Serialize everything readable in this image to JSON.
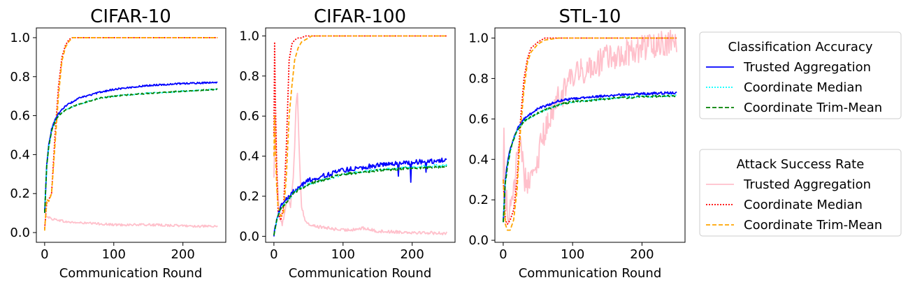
{
  "chart_data": [
    {
      "type": "line",
      "title": "CIFAR-10",
      "xlabel": "Communication Round",
      "ylabel": "",
      "xlim": [
        -12,
        262
      ],
      "ylim": [
        -0.05,
        1.05
      ],
      "xticks": [
        0,
        100,
        200
      ],
      "yticks": [
        0.0,
        0.2,
        0.4,
        0.6,
        0.8,
        1.0
      ],
      "grid": false,
      "series": [
        {
          "group": "Attack Success Rate",
          "name": "Trusted Aggregation",
          "color": "#ffc0cb",
          "style": "solid",
          "noise": 0.006,
          "x": [
            0,
            2,
            5,
            10,
            20,
            30,
            50,
            80,
            100,
            150,
            200,
            250
          ],
          "y": [
            0.12,
            0.09,
            0.08,
            0.07,
            0.065,
            0.055,
            0.05,
            0.045,
            0.04,
            0.04,
            0.035,
            0.03
          ]
        },
        {
          "group": "Attack Success Rate",
          "name": "Coordinate Median",
          "color": "#ff0000",
          "style": "dotted",
          "noise": 0.0,
          "x": [
            0,
            3,
            6,
            10,
            15,
            20,
            25,
            30,
            35,
            40,
            45,
            250
          ],
          "y": [
            0.02,
            0.15,
            0.17,
            0.2,
            0.5,
            0.75,
            0.9,
            0.96,
            0.99,
            1.0,
            1.0,
            1.0
          ]
        },
        {
          "group": "Attack Success Rate",
          "name": "Coordinate Trim-Mean",
          "color": "#ffa500",
          "style": "dashed",
          "noise": 0.0,
          "x": [
            0,
            3,
            6,
            10,
            15,
            20,
            25,
            30,
            35,
            40,
            45,
            250
          ],
          "y": [
            0.01,
            0.17,
            0.16,
            0.2,
            0.45,
            0.7,
            0.88,
            0.95,
            0.98,
            1.0,
            1.0,
            1.0
          ]
        },
        {
          "group": "Classification Accuracy",
          "name": "Trusted Aggregation",
          "color": "#0000ff",
          "style": "solid",
          "noise": 0.004,
          "x": [
            0,
            3,
            6,
            10,
            15,
            20,
            30,
            50,
            80,
            100,
            150,
            200,
            250
          ],
          "y": [
            0.1,
            0.35,
            0.45,
            0.53,
            0.58,
            0.61,
            0.65,
            0.69,
            0.72,
            0.735,
            0.755,
            0.765,
            0.77
          ]
        },
        {
          "group": "Classification Accuracy",
          "name": "Coordinate Median",
          "color": "#00ffff",
          "style": "dotted",
          "noise": 0.003,
          "x": [
            0,
            3,
            6,
            10,
            15,
            20,
            30,
            50,
            80,
            100,
            150,
            200,
            250
          ],
          "y": [
            0.1,
            0.34,
            0.44,
            0.52,
            0.57,
            0.6,
            0.63,
            0.66,
            0.69,
            0.7,
            0.715,
            0.725,
            0.735
          ]
        },
        {
          "group": "Classification Accuracy",
          "name": "Coordinate Trim-Mean",
          "color": "#008000",
          "style": "dashed",
          "noise": 0.003,
          "x": [
            0,
            3,
            6,
            10,
            15,
            20,
            30,
            50,
            80,
            100,
            150,
            200,
            250
          ],
          "y": [
            0.1,
            0.34,
            0.44,
            0.52,
            0.57,
            0.6,
            0.63,
            0.66,
            0.69,
            0.7,
            0.715,
            0.725,
            0.735
          ]
        }
      ]
    },
    {
      "type": "line",
      "title": "CIFAR-100",
      "xlabel": "Communication Round",
      "ylabel": "",
      "xlim": [
        -12,
        262
      ],
      "ylim": [
        -0.03,
        1.04
      ],
      "xticks": [
        0,
        100,
        200
      ],
      "yticks": [
        0.0,
        0.2,
        0.4,
        0.6,
        0.8,
        1.0
      ],
      "grid": false,
      "series": [
        {
          "group": "Attack Success Rate",
          "name": "Trusted Aggregation",
          "color": "#ffc0cb",
          "style": "solid",
          "noise": 0.008,
          "x": [
            0,
            2,
            4,
            8,
            12,
            16,
            20,
            24,
            28,
            30,
            32,
            34,
            36,
            38,
            40,
            45,
            50,
            60,
            80,
            100,
            130,
            150,
            200,
            250
          ],
          "y": [
            0.3,
            0.6,
            0.35,
            0.1,
            0.06,
            0.12,
            0.2,
            0.15,
            0.3,
            0.45,
            0.65,
            0.72,
            0.5,
            0.3,
            0.15,
            0.08,
            0.06,
            0.05,
            0.04,
            0.03,
            0.04,
            0.025,
            0.02,
            0.015
          ]
        },
        {
          "group": "Attack Success Rate",
          "name": "Coordinate Median",
          "color": "#ff0000",
          "style": "dotted",
          "noise": 0.0,
          "x": [
            0,
            1,
            2,
            4,
            6,
            10,
            14,
            18,
            22,
            26,
            30,
            35,
            40,
            45,
            50,
            250
          ],
          "y": [
            0.5,
            0.97,
            0.7,
            0.35,
            0.12,
            0.08,
            0.15,
            0.45,
            0.88,
            0.96,
            0.98,
            0.99,
            0.99,
            1.0,
            1.0,
            1.0
          ]
        },
        {
          "group": "Attack Success Rate",
          "name": "Coordinate Trim-Mean",
          "color": "#ffa500",
          "style": "dashed",
          "noise": 0.0,
          "x": [
            0,
            1,
            2,
            4,
            6,
            10,
            14,
            18,
            22,
            26,
            30,
            35,
            40,
            45,
            50,
            55,
            250
          ],
          "y": [
            0.4,
            0.6,
            0.45,
            0.25,
            0.15,
            0.1,
            0.12,
            0.3,
            0.6,
            0.75,
            0.88,
            0.94,
            0.97,
            0.98,
            0.99,
            1.0,
            1.0
          ]
        },
        {
          "group": "Classification Accuracy",
          "name": "Trusted Aggregation",
          "color": "#0000ff",
          "style": "solid",
          "noise": 0.012,
          "x": [
            0,
            5,
            10,
            20,
            30,
            50,
            80,
            100,
            150,
            200,
            250
          ],
          "y": [
            0.01,
            0.1,
            0.15,
            0.19,
            0.23,
            0.28,
            0.31,
            0.33,
            0.355,
            0.37,
            0.38
          ],
          "dips": [
            [
              180,
              0.3
            ],
            [
              198,
              0.27
            ],
            [
              220,
              0.32
            ]
          ]
        },
        {
          "group": "Classification Accuracy",
          "name": "Coordinate Median",
          "color": "#00ffff",
          "style": "dotted",
          "noise": 0.006,
          "x": [
            0,
            5,
            10,
            20,
            30,
            50,
            80,
            100,
            150,
            200,
            250
          ],
          "y": [
            0.01,
            0.09,
            0.14,
            0.18,
            0.22,
            0.26,
            0.29,
            0.31,
            0.33,
            0.345,
            0.355
          ]
        },
        {
          "group": "Classification Accuracy",
          "name": "Coordinate Trim-Mean",
          "color": "#008000",
          "style": "dashed",
          "noise": 0.006,
          "x": [
            0,
            5,
            10,
            20,
            30,
            50,
            80,
            100,
            150,
            200,
            250
          ],
          "y": [
            0.01,
            0.09,
            0.14,
            0.18,
            0.22,
            0.26,
            0.29,
            0.31,
            0.33,
            0.34,
            0.345
          ]
        }
      ]
    },
    {
      "type": "line",
      "title": "STL-10",
      "xlabel": "Communication Round",
      "ylabel": "",
      "xlim": [
        -12,
        262
      ],
      "ylim": [
        -0.01,
        1.05
      ],
      "xticks": [
        0,
        100,
        200
      ],
      "yticks": [
        0.0,
        0.2,
        0.4,
        0.6,
        0.8,
        1.0
      ],
      "grid": false,
      "series": [
        {
          "group": "Attack Success Rate",
          "name": "Trusted Aggregation",
          "color": "#ffc0cb",
          "style": "solid",
          "noise": 0.07,
          "x": [
            0,
            1,
            2,
            4,
            8,
            12,
            16,
            20,
            25,
            30,
            40,
            50,
            60,
            80,
            100,
            120,
            150,
            180,
            200,
            220,
            250
          ],
          "y": [
            0.3,
            0.57,
            0.35,
            0.2,
            0.12,
            0.15,
            0.25,
            0.45,
            0.5,
            0.3,
            0.3,
            0.4,
            0.55,
            0.7,
            0.8,
            0.85,
            0.9,
            0.93,
            0.95,
            0.97,
            0.99
          ]
        },
        {
          "group": "Attack Success Rate",
          "name": "Coordinate Median",
          "color": "#ff0000",
          "style": "dotted",
          "noise": 0.0,
          "x": [
            0,
            3,
            6,
            10,
            15,
            20,
            25,
            30,
            35,
            40,
            50,
            60,
            80,
            250
          ],
          "y": [
            0.3,
            0.1,
            0.08,
            0.1,
            0.15,
            0.3,
            0.6,
            0.8,
            0.9,
            0.95,
            0.98,
            1.0,
            1.0,
            1.0
          ]
        },
        {
          "group": "Attack Success Rate",
          "name": "Coordinate Trim-Mean",
          "color": "#ffa500",
          "style": "dashed",
          "noise": 0.0,
          "x": [
            0,
            3,
            6,
            10,
            15,
            20,
            25,
            30,
            35,
            40,
            50,
            60,
            80,
            250
          ],
          "y": [
            0.3,
            0.08,
            0.05,
            0.05,
            0.1,
            0.25,
            0.55,
            0.75,
            0.88,
            0.93,
            0.97,
            0.99,
            1.0,
            1.0
          ]
        },
        {
          "group": "Classification Accuracy",
          "name": "Trusted Aggregation",
          "color": "#0000ff",
          "style": "solid",
          "noise": 0.006,
          "x": [
            0,
            3,
            6,
            10,
            15,
            20,
            30,
            50,
            80,
            100,
            150,
            200,
            250
          ],
          "y": [
            0.09,
            0.3,
            0.38,
            0.45,
            0.5,
            0.55,
            0.6,
            0.65,
            0.69,
            0.7,
            0.715,
            0.725,
            0.73
          ]
        },
        {
          "group": "Classification Accuracy",
          "name": "Coordinate Median",
          "color": "#00ffff",
          "style": "dotted",
          "noise": 0.005,
          "x": [
            0,
            3,
            6,
            10,
            15,
            20,
            30,
            50,
            80,
            100,
            150,
            200,
            250
          ],
          "y": [
            0.09,
            0.28,
            0.36,
            0.44,
            0.5,
            0.54,
            0.59,
            0.63,
            0.67,
            0.685,
            0.7,
            0.71,
            0.715
          ]
        },
        {
          "group": "Classification Accuracy",
          "name": "Coordinate Trim-Mean",
          "color": "#008000",
          "style": "dashed",
          "noise": 0.005,
          "x": [
            0,
            3,
            6,
            10,
            15,
            20,
            30,
            50,
            80,
            100,
            150,
            200,
            250
          ],
          "y": [
            0.09,
            0.28,
            0.36,
            0.44,
            0.5,
            0.54,
            0.59,
            0.63,
            0.67,
            0.685,
            0.7,
            0.71,
            0.715
          ]
        }
      ]
    }
  ],
  "legends": [
    {
      "title": "Classification Accuracy",
      "entries": [
        {
          "label": "Trusted Aggregation",
          "color": "#0000ff",
          "style": "solid"
        },
        {
          "label": "Coordinate Median",
          "color": "#00ffff",
          "style": "dotted"
        },
        {
          "label": "Coordinate Trim-Mean",
          "color": "#008000",
          "style": "dashed"
        }
      ]
    },
    {
      "title": "Attack Success Rate",
      "entries": [
        {
          "label": "Trusted Aggregation",
          "color": "#ffc0cb",
          "style": "solid"
        },
        {
          "label": "Coordinate Median",
          "color": "#ff0000",
          "style": "dotted"
        },
        {
          "label": "Coordinate Trim-Mean",
          "color": "#ffa500",
          "style": "dashed"
        }
      ]
    }
  ]
}
